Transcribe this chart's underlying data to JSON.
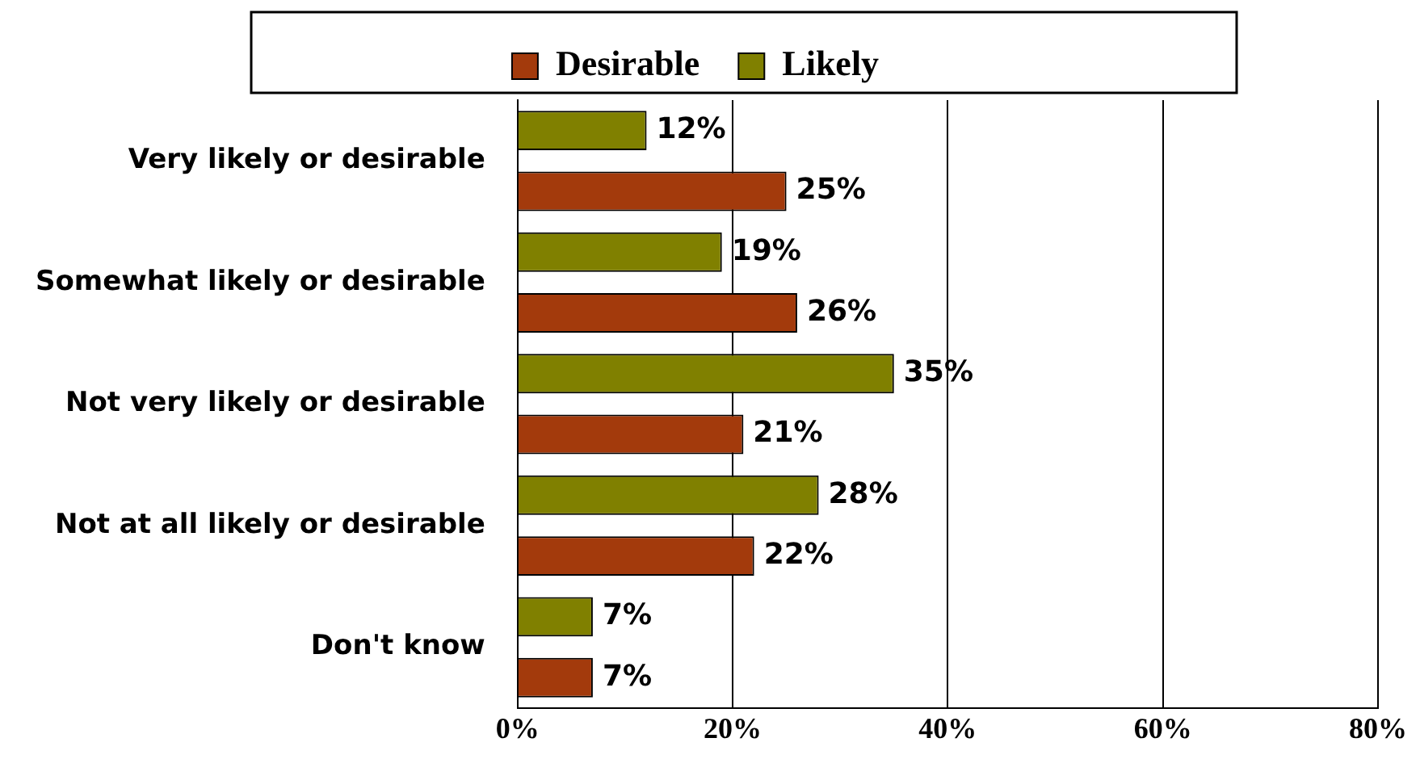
{
  "chart_data": {
    "type": "bar",
    "orientation": "horizontal",
    "categories": [
      "Very likely or desirable",
      "Somewhat likely or desirable",
      "Not very likely or desirable",
      "Not at all likely or desirable",
      "Don't know"
    ],
    "series": [
      {
        "name": "Likely",
        "color": "#808000",
        "values": [
          12,
          19,
          35,
          28,
          7
        ],
        "value_labels": [
          "12%",
          "19%",
          "35%",
          "28%",
          "7%"
        ]
      },
      {
        "name": "Desirable",
        "color": "#a33a0c",
        "values": [
          25,
          26,
          21,
          22,
          7
        ],
        "value_labels": [
          "25%",
          "26%",
          "21%",
          "22%",
          "7%"
        ]
      }
    ],
    "xlim": [
      0,
      80
    ],
    "xticks": [
      {
        "value": 0,
        "label": "0%"
      },
      {
        "value": 20,
        "label": "20%"
      },
      {
        "value": 40,
        "label": "40%"
      },
      {
        "value": 60,
        "label": "60%"
      },
      {
        "value": 80,
        "label": "80%"
      }
    ],
    "grid": "x",
    "legend": "top"
  }
}
